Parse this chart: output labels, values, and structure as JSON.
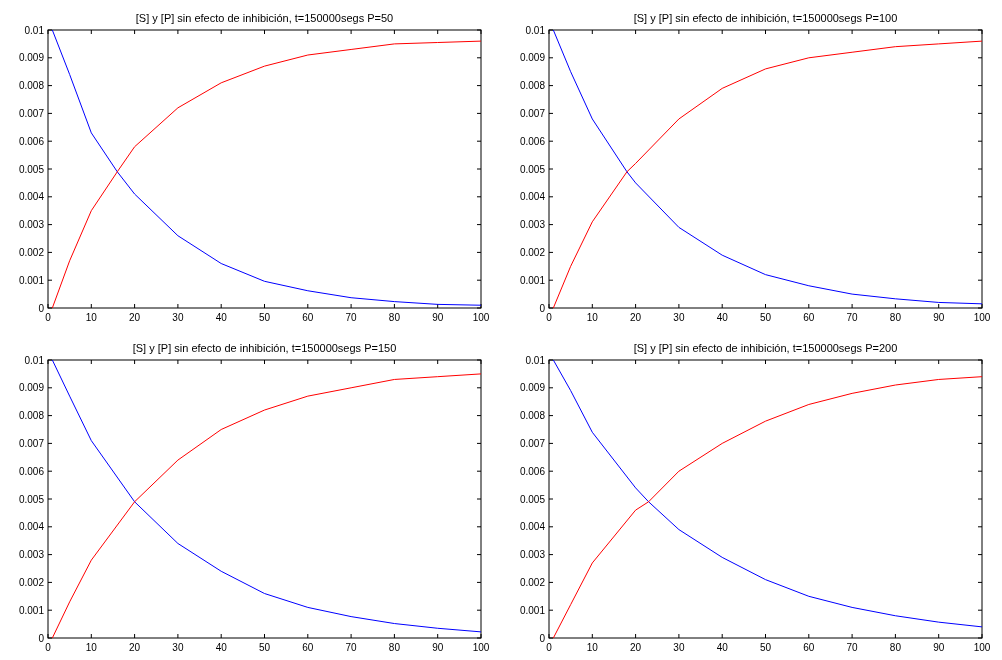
{
  "chart_data": [
    {
      "type": "line",
      "title": "[S] y [P] sin  efecto de inhibición, t=150000segs P=50",
      "x": [
        1,
        5,
        10,
        16,
        20,
        30,
        40,
        50,
        60,
        70,
        80,
        90,
        100
      ],
      "xlim": [
        0,
        100
      ],
      "xticks": [
        0,
        10,
        20,
        30,
        40,
        50,
        60,
        70,
        80,
        90,
        100
      ],
      "ylim": [
        0,
        0.01
      ],
      "yticks": [
        0,
        0.001,
        0.002,
        0.003,
        0.004,
        0.005,
        0.006,
        0.007,
        0.008,
        0.009,
        0.01
      ],
      "line_style": "solid",
      "series": [
        {
          "color": "#0000ff",
          "values": [
            0.01,
            0.0084,
            0.0063,
            0.0049,
            0.0041,
            0.0026,
            0.0016,
            0.00096,
            0.00062,
            0.00037,
            0.00023,
            0.00013,
            0.0001
          ]
        },
        {
          "color": "#ff0000",
          "values": [
            0,
            0.0017,
            0.0035,
            0.0049,
            0.0058,
            0.0072,
            0.0081,
            0.0087,
            0.0091,
            0.0093,
            0.0095,
            0.00955,
            0.0096
          ]
        }
      ]
    },
    {
      "type": "line",
      "title": "[S] y [P] sin  efecto de inhibición, t=150000segs P=100",
      "x": [
        1,
        5,
        10,
        18,
        20,
        30,
        40,
        50,
        60,
        70,
        80,
        90,
        100
      ],
      "xlim": [
        0,
        100
      ],
      "xticks": [
        0,
        10,
        20,
        30,
        40,
        50,
        60,
        70,
        80,
        90,
        100
      ],
      "ylim": [
        0,
        0.01
      ],
      "yticks": [
        0,
        0.001,
        0.002,
        0.003,
        0.004,
        0.005,
        0.006,
        0.007,
        0.008,
        0.009,
        0.01
      ],
      "line_style": "solid",
      "series": [
        {
          "color": "#0000ff",
          "values": [
            0.01,
            0.0085,
            0.0068,
            0.0049,
            0.0045,
            0.0029,
            0.0019,
            0.0012,
            0.0008,
            0.0005,
            0.00033,
            0.0002,
            0.00015
          ]
        },
        {
          "color": "#ff0000",
          "values": [
            0,
            0.0015,
            0.0031,
            0.0049,
            0.0052,
            0.0068,
            0.0079,
            0.0086,
            0.009,
            0.0092,
            0.0094,
            0.0095,
            0.0096
          ]
        }
      ]
    },
    {
      "type": "line",
      "title": "[S] y [P] sin  efecto de inhibición, t=150000segs P=150",
      "x": [
        1,
        5,
        10,
        20,
        30,
        40,
        50,
        60,
        70,
        80,
        90,
        100
      ],
      "xlim": [
        0,
        100
      ],
      "xticks": [
        0,
        10,
        20,
        30,
        40,
        50,
        60,
        70,
        80,
        90,
        100
      ],
      "ylim": [
        0,
        0.01
      ],
      "yticks": [
        0,
        0.001,
        0.002,
        0.003,
        0.004,
        0.005,
        0.006,
        0.007,
        0.008,
        0.009,
        0.01
      ],
      "line_style": "solid",
      "series": [
        {
          "color": "#0000ff",
          "values": [
            0.01,
            0.0087,
            0.0071,
            0.0049,
            0.0034,
            0.0024,
            0.0016,
            0.0011,
            0.00077,
            0.00052,
            0.00035,
            0.00022
          ]
        },
        {
          "color": "#ff0000",
          "values": [
            0,
            0.0013,
            0.0028,
            0.0049,
            0.0064,
            0.0075,
            0.0082,
            0.0087,
            0.009,
            0.0093,
            0.0094,
            0.0095
          ]
        }
      ]
    },
    {
      "type": "line",
      "title": "[S] y [P] sin  efecto de inhibición, t=150000segs P=200",
      "x": [
        1,
        5,
        10,
        20,
        23,
        30,
        40,
        50,
        60,
        70,
        80,
        90,
        100
      ],
      "xlim": [
        0,
        100
      ],
      "xticks": [
        0,
        10,
        20,
        30,
        40,
        50,
        60,
        70,
        80,
        90,
        100
      ],
      "ylim": [
        0,
        0.01
      ],
      "yticks": [
        0,
        0.001,
        0.002,
        0.003,
        0.004,
        0.005,
        0.006,
        0.007,
        0.008,
        0.009,
        0.01
      ],
      "line_style": "solid",
      "series": [
        {
          "color": "#0000ff",
          "values": [
            0.01,
            0.0089,
            0.0074,
            0.0054,
            0.0049,
            0.0039,
            0.0029,
            0.0021,
            0.0015,
            0.0011,
            0.0008,
            0.00057,
            0.0004
          ]
        },
        {
          "color": "#ff0000",
          "values": [
            0,
            0.0012,
            0.0027,
            0.0046,
            0.0049,
            0.006,
            0.007,
            0.0078,
            0.0084,
            0.0088,
            0.0091,
            0.0093,
            0.0094
          ]
        }
      ]
    }
  ]
}
